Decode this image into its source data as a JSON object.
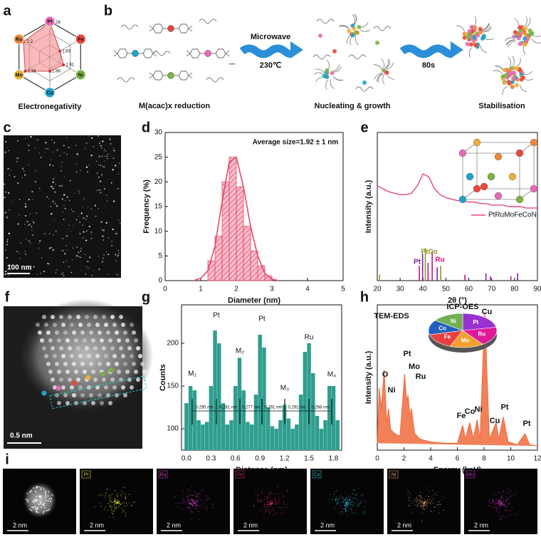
{
  "panel_labels": [
    "a",
    "b",
    "c",
    "d",
    "e",
    "f",
    "g",
    "h",
    "i"
  ],
  "chart_data": [
    {
      "type": "radar",
      "title": "Electronegativity",
      "categories": [
        "Pt",
        "Fe",
        "Ni",
        "Co",
        "Mo",
        "Ru"
      ],
      "values": [
        2.28,
        1.83,
        1.91,
        1.88,
        2.16,
        2.2
      ],
      "value_labels": [
        "2.28",
        "1.83",
        "1.91",
        "1.88",
        "2.16",
        "2.2"
      ],
      "rlim": [
        1.6,
        2.3
      ],
      "color": "#f28b8b",
      "marker_colors": [
        "#e86ab8",
        "#e8483c",
        "#7cb342",
        "#1fa3c8",
        "#e8b13c",
        "#f0883c"
      ]
    },
    {
      "type": "histogram",
      "xlabel": "Diameter (nm)",
      "ylabel": "Frequency (%)",
      "annotation": "Average size=1.92 ± 1 nm",
      "bins": [
        1.2,
        1.4,
        1.6,
        1.8,
        2.0,
        2.2,
        2.4,
        2.6,
        2.8,
        3.0
      ],
      "values": [
        4,
        9,
        20,
        25,
        19,
        11,
        6,
        3,
        1
      ],
      "color": "#e8486a",
      "fit": {
        "x": [
          0.8,
          1.0,
          1.2,
          1.4,
          1.6,
          1.8,
          2.0,
          2.2,
          2.4,
          2.6,
          2.8,
          3.0,
          3.2
        ],
        "values": [
          0,
          0.5,
          2,
          7,
          16,
          24,
          25,
          19,
          11,
          5,
          1.5,
          0.3,
          0
        ]
      },
      "xlim": [
        0,
        5
      ],
      "ylim": [
        0,
        30
      ],
      "xticks": [
        0,
        1,
        2,
        3,
        4,
        5
      ],
      "yticks": [
        0,
        5,
        10,
        15,
        20,
        25,
        30
      ]
    },
    {
      "type": "line",
      "xlabel": "2θ (°)",
      "ylabel": "Intensity (a.u.)",
      "xlim": [
        20,
        90
      ],
      "ylim": [
        0,
        10
      ],
      "xticks": [
        20,
        30,
        40,
        50,
        60,
        70,
        80,
        90
      ],
      "series": [
        {
          "name": "PtRuMoFeCoNi",
          "color": "#e8487a",
          "x": [
            20,
            22.5,
            25,
            27.5,
            30,
            32.5,
            35,
            37.5,
            40,
            42.5,
            45,
            47.5,
            50,
            52.5,
            55,
            57.5,
            60,
            62.5,
            65,
            67.5,
            70,
            72.5,
            75,
            77.5,
            80,
            82.5,
            85,
            87.5,
            90
          ],
          "values": [
            6.4,
            6.2,
            6.0,
            5.9,
            5.8,
            5.8,
            5.9,
            6.4,
            7.2,
            7.0,
            6.2,
            5.8,
            5.6,
            5.5,
            5.4,
            5.4,
            5.3,
            5.3,
            5.2,
            5.2,
            5.1,
            5.1,
            5.1,
            5.0,
            5.0,
            5.0,
            4.9,
            4.9,
            4.9
          ]
        }
      ],
      "references": [
        {
          "name": "Pt",
          "color": "#8020a0",
          "x": [
            39.8,
            46.2,
            67.5,
            81.3
          ],
          "values": [
            1.8,
            0.9,
            0.5,
            0.5
          ]
        },
        {
          "name": "PtCo",
          "color": "#8a9a20",
          "x": [
            21.0,
            41.0,
            47.7
          ],
          "values": [
            0.4,
            2.2,
            1.0
          ]
        },
        {
          "name": "Ru",
          "color": "#d01080",
          "x": [
            38.4,
            42.2,
            44.0,
            58.3,
            69.4,
            78.4
          ],
          "values": [
            1.0,
            1.2,
            2.0,
            0.4,
            0.3,
            0.3
          ]
        }
      ]
    },
    {
      "type": "bar",
      "xlabel": "Distance (nm)",
      "ylabel": "Counts",
      "xlim": [
        -0.06,
        1.9
      ],
      "ylim": [
        75,
        245
      ],
      "xticks": [
        {
          "value": 0,
          "label": "0.0"
        },
        0.3,
        0.6,
        0.9,
        1.2,
        1.5,
        1.8
      ],
      "yticks": [
        100,
        150,
        200
      ],
      "color": "#2f9e8f",
      "x": [
        0,
        0.05,
        0.1,
        0.15,
        0.2,
        0.25,
        0.3,
        0.35,
        0.4,
        0.45,
        0.5,
        0.55,
        0.6,
        0.65,
        0.7,
        0.75,
        0.8,
        0.85,
        0.9,
        0.95,
        1.0,
        1.05,
        1.1,
        1.15,
        1.2,
        1.25,
        1.3,
        1.35,
        1.4,
        1.45,
        1.5,
        1.55,
        1.6,
        1.65,
        1.7,
        1.75,
        1.8,
        1.85
      ],
      "values": [
        130,
        150,
        145,
        110,
        105,
        108,
        150,
        215,
        200,
        130,
        105,
        110,
        150,
        183,
        145,
        108,
        105,
        140,
        210,
        195,
        125,
        103,
        100,
        110,
        128,
        112,
        100,
        105,
        140,
        190,
        200,
        165,
        115,
        100,
        110,
        150,
        150,
        110
      ],
      "peak_labels": [
        "M₁",
        "Pt",
        "M₂",
        "Pt",
        "M₃",
        "Ru",
        "M₄"
      ],
      "spacings": [
        "0.295 nm",
        "0.281 nm",
        "0.277 nm",
        "0.291 nm",
        "0.291 nm",
        "0.268 nm"
      ]
    },
    {
      "type": "area",
      "xlabel": "Energy (keV)",
      "ylabel": "Intensity (a.u.)",
      "annotation": "TEM-EDS",
      "xlim": [
        0,
        12
      ],
      "ylim": [
        0,
        105
      ],
      "xticks": [
        0,
        2,
        4,
        6,
        8,
        10,
        12
      ],
      "color": "#f06a3c",
      "x": [
        0,
        0.15,
        0.3,
        0.52,
        0.7,
        0.85,
        1.0,
        1.3,
        1.7,
        2.05,
        2.2,
        2.3,
        2.45,
        2.56,
        2.8,
        3.2,
        4,
        5,
        6,
        6.4,
        6.6,
        6.93,
        7.2,
        7.48,
        7.7,
        8.05,
        8.4,
        8.9,
        9.1,
        9.44,
        9.8,
        10.5,
        11.07,
        11.4,
        12
      ],
      "values": [
        5,
        45,
        30,
        58,
        20,
        30,
        15,
        12,
        10,
        55,
        35,
        40,
        25,
        30,
        12,
        8,
        6,
        5,
        5,
        18,
        8,
        20,
        8,
        22,
        8,
        100,
        8,
        20,
        8,
        24,
        6,
        4,
        12,
        4,
        3
      ],
      "peak_labels": [
        "O",
        "Ni",
        "Pt",
        "Mo",
        "Ru",
        "Fe",
        "Co",
        "Ni",
        "Cu",
        "Cu",
        "Pt",
        "Pt"
      ],
      "inset": {
        "type": "pie",
        "title": "ICP-OES",
        "categories": [
          "Pt",
          "Ru",
          "Mo",
          "Fe",
          "Co",
          "Ni"
        ],
        "values": [
          22,
          18,
          16,
          15,
          14,
          15
        ],
        "colors": [
          "#9b30d0",
          "#e0189a",
          "#f0a030",
          "#e84040",
          "#2060c0",
          "#70b050"
        ]
      }
    }
  ],
  "scheme": {
    "steps": [
      "M(acac)x reduction",
      "Nucleating & growth",
      "Stabilisation"
    ],
    "ellipsis": "...",
    "arrow1": "Microwave",
    "arrow1_sub": "230℃",
    "arrow2": "80s"
  },
  "images": {
    "c_scale": "100 nm",
    "f_scale": "0.5 nm"
  },
  "mapping": {
    "haadf_scale": "2 nm",
    "maps": [
      {
        "element": "Pt",
        "color": "#d8d840",
        "scale": "2 nm"
      },
      {
        "element": "Ru",
        "color": "#d040c0",
        "scale": "2 nm"
      },
      {
        "element": "Fe",
        "color": "#e0305a",
        "scale": "2 nm"
      },
      {
        "element": "Co",
        "color": "#30c0d8",
        "scale": "2 nm"
      },
      {
        "element": "Ni",
        "color": "#e0a070",
        "scale": "2 nm"
      },
      {
        "element": "Mo",
        "color": "#c030c0",
        "scale": "2 nm"
      }
    ]
  }
}
